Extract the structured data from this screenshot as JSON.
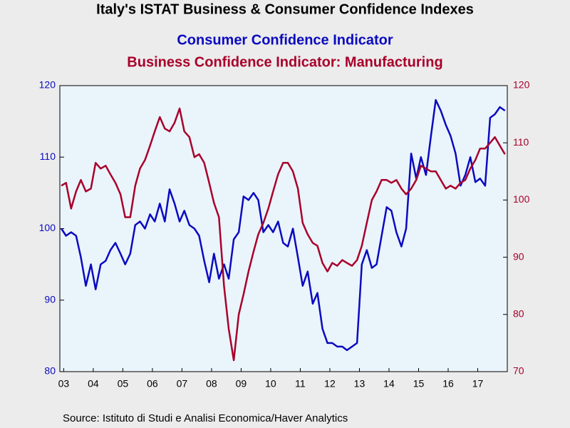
{
  "chart_data": {
    "type": "line",
    "title": "Italy's ISTAT Business & Consumer Confidence Indexes",
    "source": "Source:  Istituto di Studi e Analisi Economica/Haver Analytics",
    "xlim": [
      2003.37,
      2018.5
    ],
    "xticks": [
      {
        "value": 2003.5,
        "label": "03"
      },
      {
        "value": 2004.5,
        "label": "04"
      },
      {
        "value": 2005.5,
        "label": "05"
      },
      {
        "value": 2006.5,
        "label": "06"
      },
      {
        "value": 2007.5,
        "label": "07"
      },
      {
        "value": 2008.5,
        "label": "08"
      },
      {
        "value": 2009.5,
        "label": "09"
      },
      {
        "value": 2010.5,
        "label": "10"
      },
      {
        "value": 2011.5,
        "label": "11"
      },
      {
        "value": 2012.5,
        "label": "12"
      },
      {
        "value": 2013.5,
        "label": "13"
      },
      {
        "value": 2014.5,
        "label": "14"
      },
      {
        "value": 2015.5,
        "label": "15"
      },
      {
        "value": 2016.5,
        "label": "16"
      },
      {
        "value": 2017.5,
        "label": "17"
      }
    ],
    "ylim": [
      80,
      120
    ],
    "yticks": [
      80,
      90,
      100,
      110,
      120
    ],
    "y2lim": [
      70,
      120
    ],
    "y2ticks": [
      70,
      80,
      90,
      100,
      110,
      120
    ],
    "x": [
      2003.42,
      2003.58,
      2003.75,
      2003.92,
      2004.08,
      2004.25,
      2004.42,
      2004.58,
      2004.75,
      2004.92,
      2005.08,
      2005.25,
      2005.42,
      2005.58,
      2005.75,
      2005.92,
      2006.08,
      2006.25,
      2006.42,
      2006.58,
      2006.75,
      2006.92,
      2007.08,
      2007.25,
      2007.42,
      2007.58,
      2007.75,
      2007.92,
      2008.08,
      2008.25,
      2008.42,
      2008.58,
      2008.75,
      2008.92,
      2009.08,
      2009.25,
      2009.42,
      2009.58,
      2009.75,
      2009.92,
      2010.08,
      2010.25,
      2010.42,
      2010.58,
      2010.75,
      2010.92,
      2011.08,
      2011.25,
      2011.42,
      2011.58,
      2011.75,
      2011.92,
      2012.08,
      2012.25,
      2012.42,
      2012.58,
      2012.75,
      2012.92,
      2013.08,
      2013.25,
      2013.42,
      2013.58,
      2013.75,
      2013.92,
      2014.08,
      2014.25,
      2014.42,
      2014.58,
      2014.75,
      2014.92,
      2015.08,
      2015.25,
      2015.42,
      2015.58,
      2015.75,
      2015.92,
      2016.08,
      2016.25,
      2016.42,
      2016.58,
      2016.75,
      2016.92,
      2017.08,
      2017.25,
      2017.42,
      2017.58,
      2017.75,
      2017.92,
      2018.08,
      2018.25,
      2018.42
    ],
    "series": [
      {
        "name": "Consumer Confidence Indicator",
        "color": "#0a0ac0",
        "axis": "y",
        "values": [
          100,
          99,
          99.5,
          99,
          96,
          92,
          95,
          91.5,
          95,
          95.5,
          97,
          98,
          96.5,
          95,
          96.5,
          100.5,
          101,
          100,
          102,
          101,
          103.5,
          101,
          105.5,
          103.5,
          101,
          102.5,
          100.5,
          100,
          99,
          95.5,
          92.5,
          96.5,
          93,
          95,
          93,
          98.5,
          99.5,
          104.5,
          104,
          105,
          104,
          99.5,
          100.5,
          99.5,
          101,
          98,
          97.5,
          100,
          96,
          92,
          94,
          89.5,
          91,
          86,
          84,
          84,
          83.5,
          83.5,
          83,
          83.5,
          84,
          95,
          97,
          94.5,
          95,
          99,
          103,
          102.5,
          99.5,
          97.5,
          100,
          110.5,
          107,
          110,
          107.5,
          113,
          118,
          116.5,
          114.5,
          113,
          110.5,
          106,
          107.5,
          110,
          106.5,
          107,
          106,
          115.5,
          116,
          117,
          116.5
        ]
      },
      {
        "name": "Business Confidence Indicator: Manufacturing",
        "color": "#a8002a",
        "axis": "y2",
        "values": [
          102.5,
          103,
          98.5,
          101.5,
          103.5,
          101.5,
          102,
          106.5,
          105.5,
          106,
          104.5,
          103,
          101,
          97,
          97,
          102.5,
          105.5,
          107,
          109.5,
          112,
          114.5,
          112.5,
          112,
          113.5,
          116,
          112,
          111,
          107.5,
          108,
          106.5,
          103,
          99.5,
          97,
          85,
          77.5,
          72,
          80,
          83.5,
          87.5,
          91,
          94,
          96,
          98.5,
          101.5,
          104.5,
          106.5,
          106.5,
          105,
          102,
          96,
          94,
          92.5,
          92,
          89,
          87.5,
          89,
          88.5,
          89.5,
          89,
          88.5,
          89.5,
          92,
          96,
          100,
          101.5,
          103.5,
          103.5,
          103,
          103.5,
          102,
          101,
          102,
          103.5,
          106,
          105.5,
          105,
          105,
          103.5,
          102,
          102.5,
          102,
          103,
          103.5,
          105.5,
          107,
          109,
          109,
          110,
          111,
          109.5,
          108
        ]
      }
    ]
  }
}
